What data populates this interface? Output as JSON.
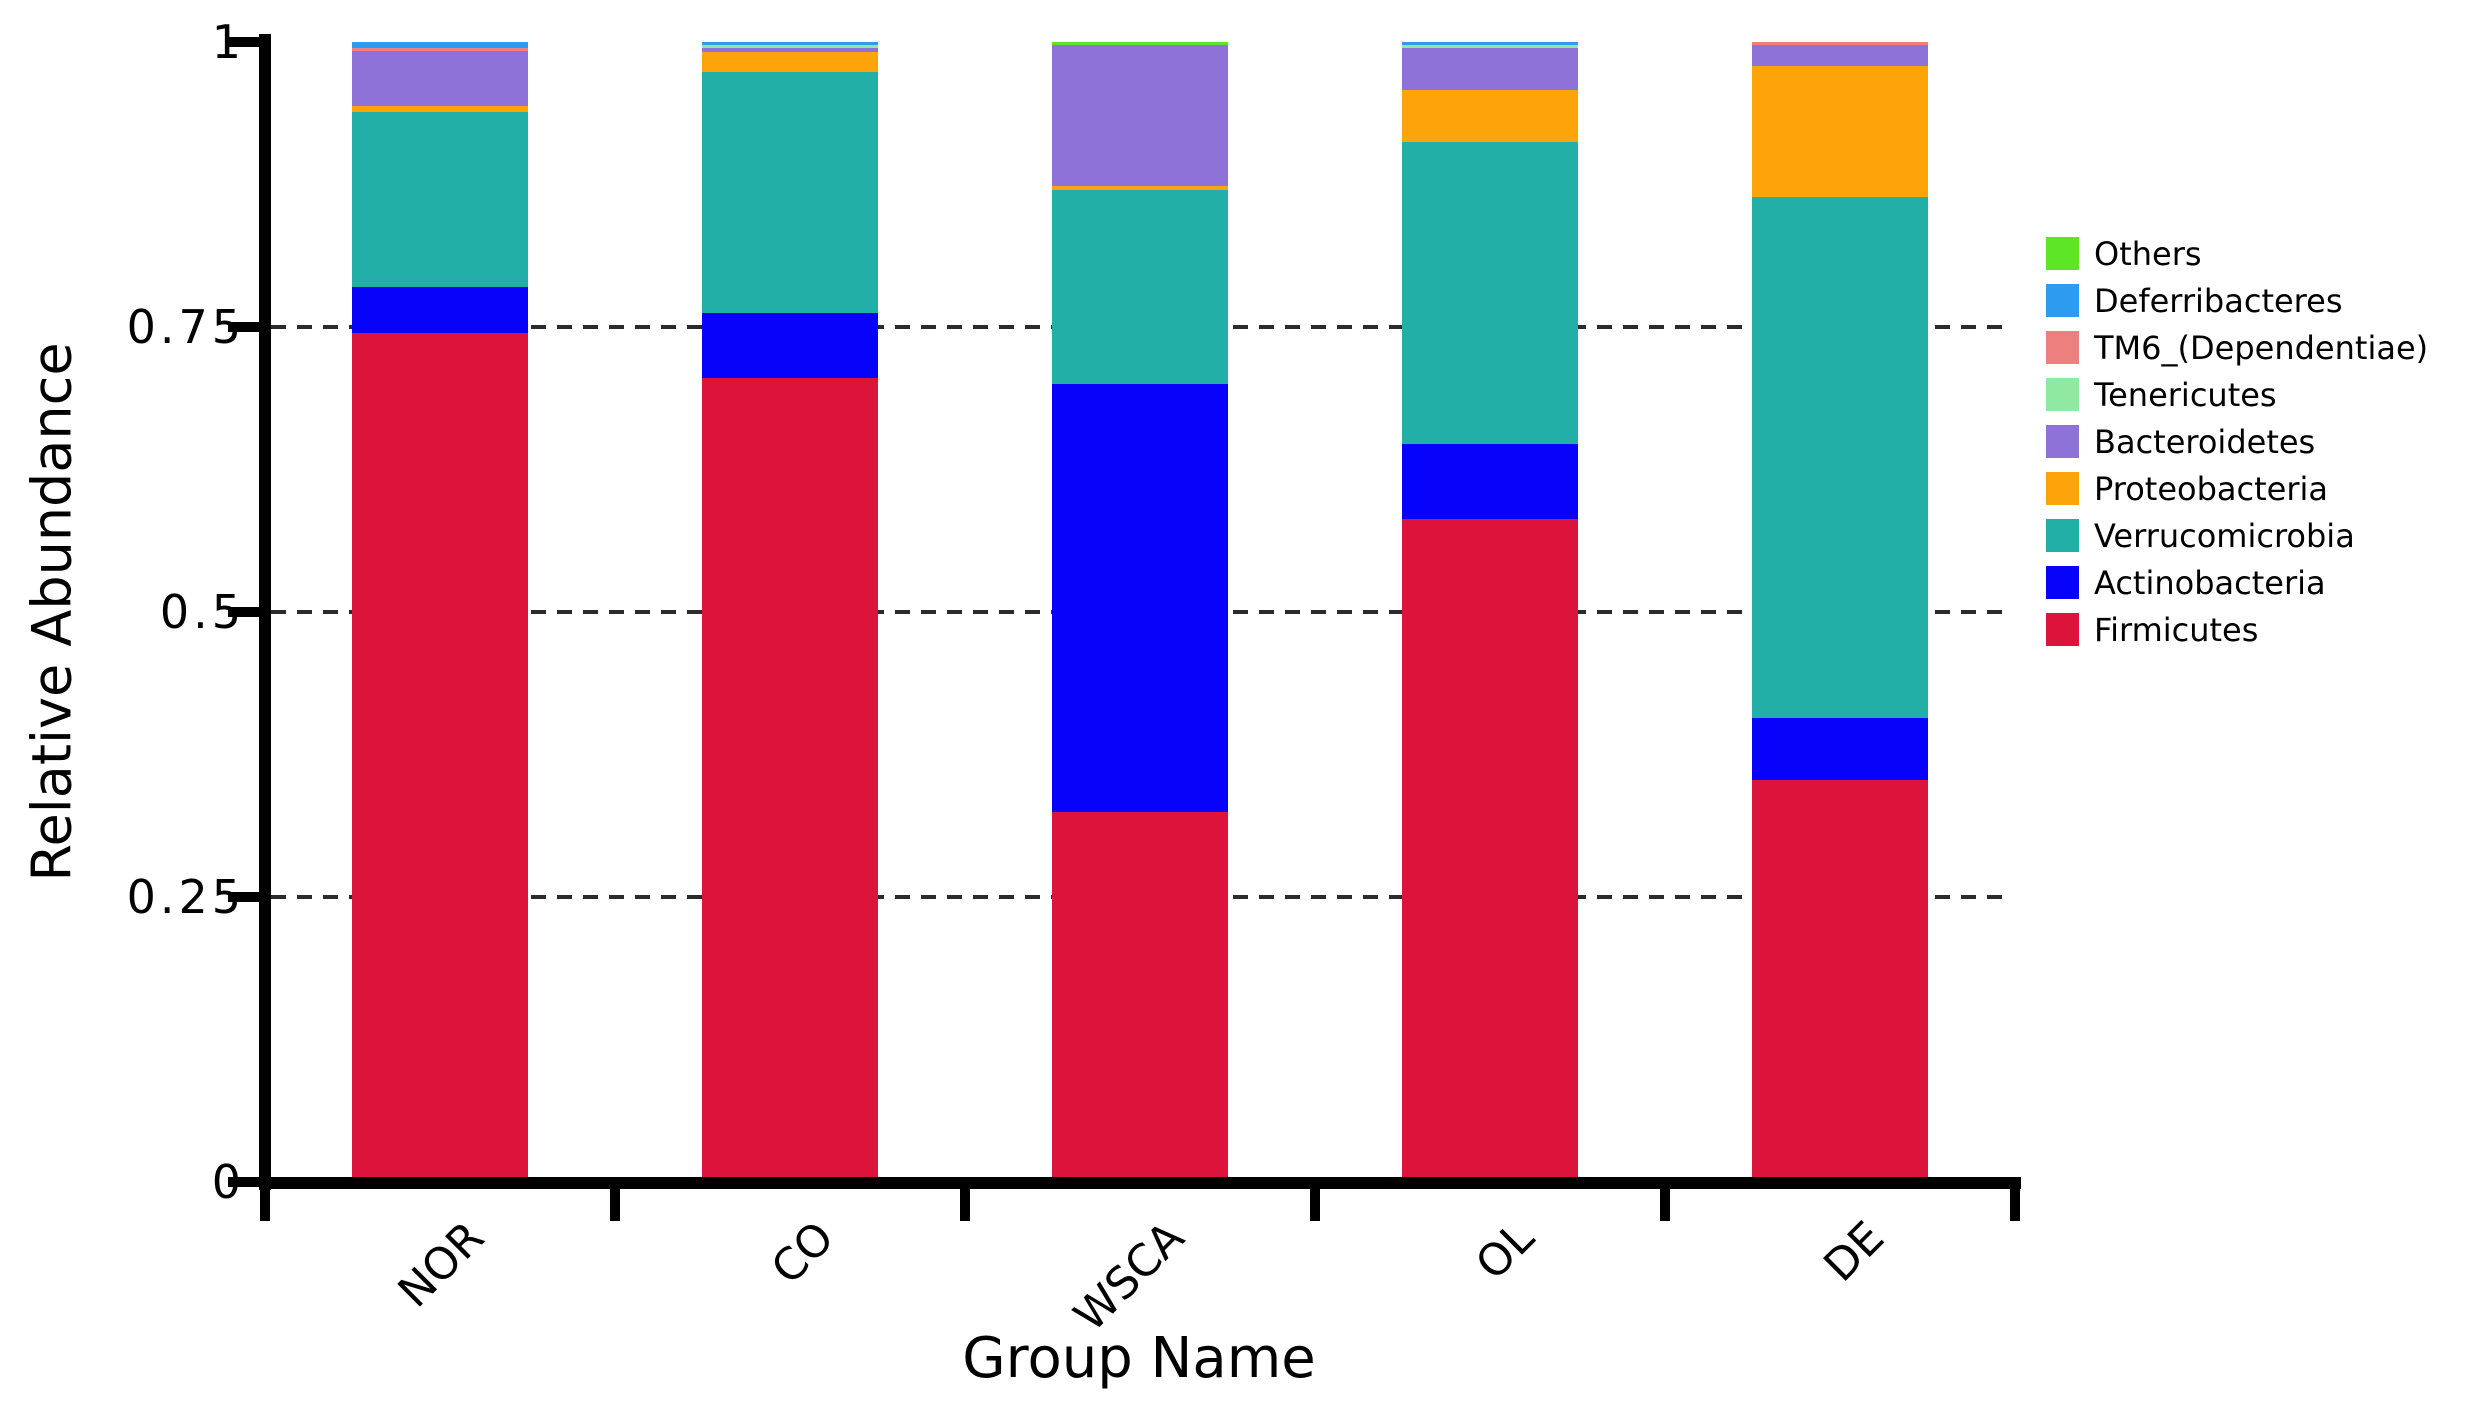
{
  "chart_data": {
    "type": "bar",
    "stacked": true,
    "title": "",
    "xlabel": "Group Name",
    "ylabel": "Relative Abundance",
    "categories": [
      "NOR",
      "CO",
      "WSCA",
      "OL",
      "DE"
    ],
    "ylim": [
      0,
      1
    ],
    "y_ticks": [
      0,
      0.25,
      0.5,
      0.75,
      1
    ],
    "y_tick_labels": [
      "0",
      "0.25",
      "0.5",
      "0.75",
      "1"
    ],
    "gridlines": {
      "style": "dashed",
      "at": [
        0.25,
        0.5,
        0.75
      ],
      "color": "#2b2b2b"
    },
    "legend_position": "right-outside",
    "legend_order_top_to_bottom": [
      "Others",
      "Deferribacteres",
      "TM6_(Dependentiae)",
      "Tenericutes",
      "Bacteroidetes",
      "Proteobacteria",
      "Verrucomicrobia",
      "Actinobacteria",
      "Firmicutes"
    ],
    "series": [
      {
        "name": "Firmicutes",
        "color": "#DC143C",
        "values": [
          0.745,
          0.705,
          0.325,
          0.582,
          0.353
        ]
      },
      {
        "name": "Actinobacteria",
        "color": "#0702FA",
        "values": [
          0.04,
          0.057,
          0.375,
          0.065,
          0.054
        ]
      },
      {
        "name": "Verrucomicrobia",
        "color": "#22AFA7",
        "values": [
          0.154,
          0.212,
          0.17,
          0.265,
          0.457
        ]
      },
      {
        "name": "Proteobacteria",
        "color": "#FDA40B",
        "values": [
          0.005,
          0.017,
          0.004,
          0.046,
          0.115
        ]
      },
      {
        "name": "Bacteroidetes",
        "color": "#8F72D8",
        "values": [
          0.048,
          0.004,
          0.123,
          0.037,
          0.018
        ]
      },
      {
        "name": "Tenericutes",
        "color": "#8FE9A0",
        "values": [
          0.0,
          0.002,
          0.0,
          0.002,
          0.0
        ]
      },
      {
        "name": "TM6_(Dependentiae)",
        "color": "#EE7F7F",
        "values": [
          0.003,
          0.0,
          0.0,
          0.0,
          0.003
        ]
      },
      {
        "name": "Deferribacteres",
        "color": "#2D9BF0",
        "values": [
          0.005,
          0.003,
          0.0,
          0.003,
          0.0
        ]
      },
      {
        "name": "Others",
        "color": "#5CE626",
        "values": [
          0.0,
          0.0,
          0.003,
          0.0,
          0.0
        ]
      }
    ]
  }
}
